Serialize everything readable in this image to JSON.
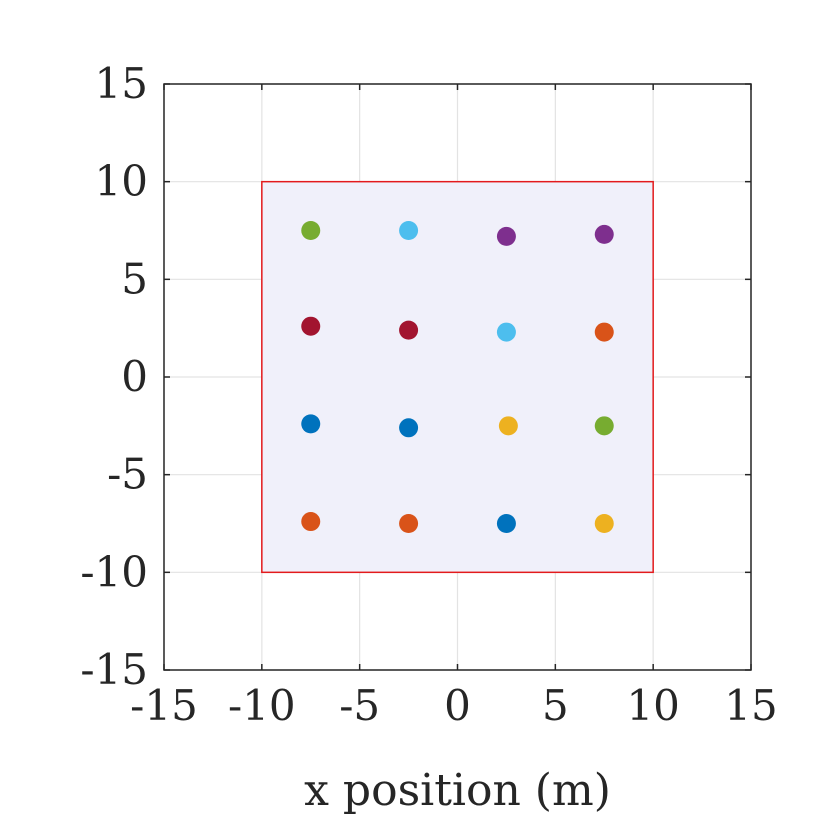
{
  "chart_data": {
    "type": "scatter",
    "title": "",
    "xlabel": "x position (m)",
    "ylabel": "",
    "xlim": [
      -15,
      15
    ],
    "ylim": [
      -15,
      15
    ],
    "xticks": [
      -15,
      -10,
      -5,
      0,
      5,
      10,
      15
    ],
    "yticks": [
      -15,
      -10,
      -5,
      0,
      5,
      10,
      15
    ],
    "xtick_labels": [
      "-15",
      "-10",
      "-5",
      "0",
      "5",
      "10",
      "15"
    ],
    "ytick_labels": [
      "-15",
      "-10",
      "-5",
      "0",
      "5",
      "10",
      "15"
    ],
    "grid": true,
    "region": {
      "x": [
        -10,
        10
      ],
      "y": [
        -10,
        10
      ],
      "fill": "#f0f0fa",
      "edge": "#e31a1c"
    },
    "points": [
      {
        "x": -7.5,
        "y": 7.5,
        "color": "#77ac30"
      },
      {
        "x": -2.5,
        "y": 7.5,
        "color": "#4dbeee"
      },
      {
        "x": 2.5,
        "y": 7.2,
        "color": "#7e2f8e"
      },
      {
        "x": 7.5,
        "y": 7.3,
        "color": "#7e2f8e"
      },
      {
        "x": -7.5,
        "y": 2.6,
        "color": "#a2142f"
      },
      {
        "x": -2.5,
        "y": 2.4,
        "color": "#a2142f"
      },
      {
        "x": 2.5,
        "y": 2.3,
        "color": "#4dbeee"
      },
      {
        "x": 7.5,
        "y": 2.3,
        "color": "#d95319"
      },
      {
        "x": -7.5,
        "y": -2.4,
        "color": "#0072bd"
      },
      {
        "x": -2.5,
        "y": -2.6,
        "color": "#0072bd"
      },
      {
        "x": 2.6,
        "y": -2.5,
        "color": "#edb120"
      },
      {
        "x": 7.5,
        "y": -2.5,
        "color": "#77ac30"
      },
      {
        "x": -7.5,
        "y": -7.4,
        "color": "#d95319"
      },
      {
        "x": -2.5,
        "y": -7.5,
        "color": "#d95319"
      },
      {
        "x": 2.5,
        "y": -7.5,
        "color": "#0072bd"
      },
      {
        "x": 7.5,
        "y": -7.5,
        "color": "#edb120"
      }
    ]
  }
}
